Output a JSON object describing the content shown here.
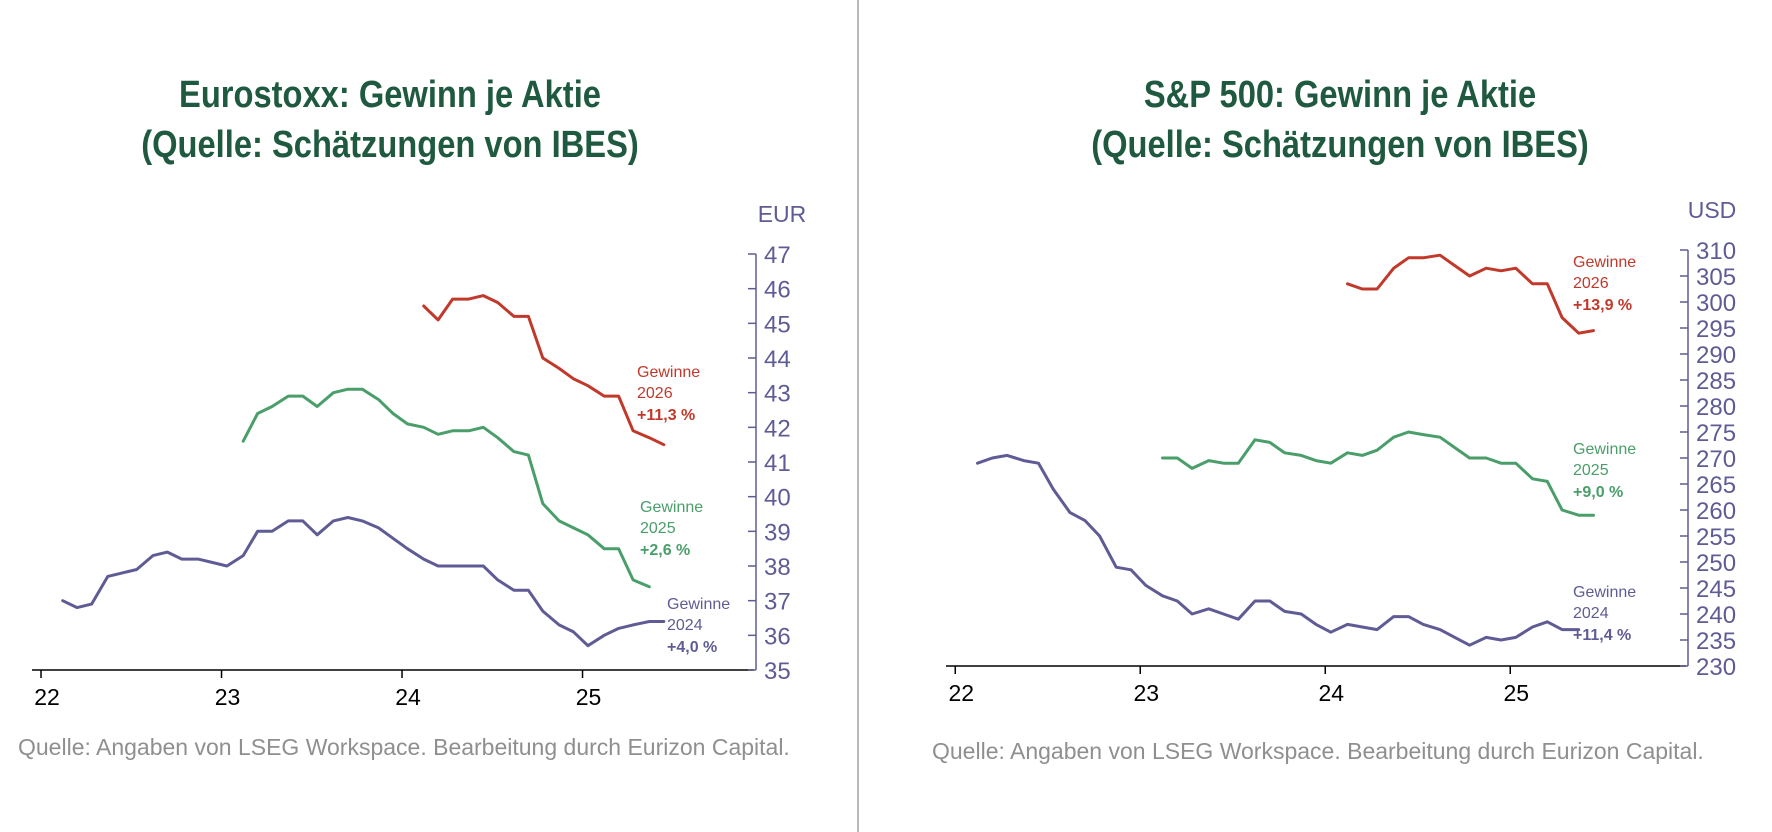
{
  "charts": [
    {
      "title_line1": "Eurostoxx: Gewinn je Aktie",
      "title_line2": "(Quelle: Schätzungen von IBES)",
      "source": "Quelle: Angaben von LSEG Workspace. Bearbeitung durch Eurizon Capital."
    },
    {
      "title_line1": "S&P 500: Gewinn je Aktie",
      "title_line2": "(Quelle: Schätzungen von IBES)",
      "source": "Quelle: Angaben von LSEG Workspace. Bearbeitung durch Eurizon Capital."
    }
  ],
  "chart_data": [
    {
      "type": "line",
      "title": "Eurostoxx: Gewinn je Aktie (Quelle: Schätzungen von IBES)",
      "ylabel": "EUR",
      "ylim": [
        35,
        47
      ],
      "ytick_step": 1,
      "xlim": [
        21.95,
        25.95
      ],
      "xticks": [
        "22",
        "23",
        "24",
        "25"
      ],
      "grid": false,
      "legend": "inline labels right of series end",
      "series": [
        {
          "name": "Gewinne 2026",
          "label_line1": "Gewinne",
          "label_line2": "2026",
          "label_pct": "+11,3 %",
          "color": "#c0392b",
          "x": [
            24.12,
            24.2,
            24.28,
            24.37,
            24.45,
            24.53,
            24.62,
            24.7,
            24.78,
            24.87,
            24.95,
            25.03,
            25.12,
            25.2,
            25.28,
            25.37,
            25.45
          ],
          "y": [
            45.5,
            45.1,
            45.7,
            45.7,
            45.8,
            45.6,
            45.2,
            45.2,
            44.0,
            43.7,
            43.4,
            43.2,
            42.9,
            42.9,
            41.9,
            41.7,
            41.5
          ]
        },
        {
          "name": "Gewinne 2025",
          "label_line1": "Gewinne",
          "label_line2": "2025",
          "label_pct": "+2,6 %",
          "color": "#4a9e6a",
          "x": [
            23.12,
            23.2,
            23.28,
            23.37,
            23.45,
            23.53,
            23.62,
            23.7,
            23.78,
            23.87,
            23.95,
            24.03,
            24.12,
            24.2,
            24.28,
            24.37,
            24.45,
            24.53,
            24.62,
            24.7,
            24.78,
            24.87,
            24.95,
            25.03,
            25.12,
            25.2,
            25.28,
            25.37
          ],
          "y": [
            41.6,
            42.4,
            42.6,
            42.9,
            42.9,
            42.6,
            43.0,
            43.1,
            43.1,
            42.8,
            42.4,
            42.1,
            42.0,
            41.8,
            41.9,
            41.9,
            42.0,
            41.7,
            41.3,
            41.2,
            39.8,
            39.3,
            39.1,
            38.9,
            38.5,
            38.5,
            37.6,
            37.4
          ]
        },
        {
          "name": "Gewinne 2024",
          "label_line1": "Gewinne",
          "label_line2": "2024",
          "label_pct": "+4,0 %",
          "color": "#5f5c95",
          "x": [
            22.12,
            22.2,
            22.28,
            22.37,
            22.45,
            22.53,
            22.62,
            22.7,
            22.78,
            22.87,
            22.95,
            23.03,
            23.12,
            23.2,
            23.28,
            23.37,
            23.45,
            23.53,
            23.62,
            23.7,
            23.78,
            23.87,
            23.95,
            24.03,
            24.12,
            24.2,
            24.28,
            24.37,
            24.45,
            24.53,
            24.62,
            24.7,
            24.78,
            24.87,
            24.95,
            25.03,
            25.12,
            25.2,
            25.28,
            25.37,
            25.45
          ],
          "y": [
            37.0,
            36.8,
            36.9,
            37.7,
            37.8,
            37.9,
            38.3,
            38.4,
            38.2,
            38.2,
            38.1,
            38.0,
            38.3,
            39.0,
            39.0,
            39.3,
            39.3,
            38.9,
            39.3,
            39.4,
            39.3,
            39.1,
            38.8,
            38.5,
            38.2,
            38.0,
            38.0,
            38.0,
            38.0,
            37.6,
            37.3,
            37.3,
            36.7,
            36.3,
            36.1,
            35.7,
            36.0,
            36.2,
            36.3,
            36.4,
            36.4
          ]
        }
      ]
    },
    {
      "type": "line",
      "title": "S&P 500: Gewinn je Aktie (Quelle: Schätzungen von IBES)",
      "ylabel": "USD",
      "ylim": [
        230,
        310
      ],
      "ytick_step": 5,
      "xlim": [
        21.95,
        25.95
      ],
      "xticks": [
        "22",
        "23",
        "24",
        "25"
      ],
      "grid": false,
      "legend": "inline labels right of series end",
      "series": [
        {
          "name": "Gewinne 2026",
          "label_line1": "Gewinne",
          "label_line2": "2026",
          "label_pct": "+13,9 %",
          "color": "#c0392b",
          "x": [
            24.12,
            24.2,
            24.28,
            24.37,
            24.45,
            24.53,
            24.62,
            24.7,
            24.78,
            24.87,
            24.95,
            25.03,
            25.12,
            25.2,
            25.28,
            25.37,
            25.45
          ],
          "y": [
            303.5,
            302.5,
            302.5,
            306.5,
            308.5,
            308.5,
            309.0,
            307.0,
            305.0,
            306.5,
            306.0,
            306.5,
            303.5,
            303.5,
            297.0,
            294.0,
            294.5
          ]
        },
        {
          "name": "Gewinne 2025",
          "label_line1": "Gewinne",
          "label_line2": "2025",
          "label_pct": "+9,0 %",
          "color": "#4a9e6a",
          "x": [
            23.12,
            23.2,
            23.28,
            23.37,
            23.45,
            23.53,
            23.62,
            23.7,
            23.78,
            23.87,
            23.95,
            24.03,
            24.12,
            24.2,
            24.28,
            24.37,
            24.45,
            24.53,
            24.62,
            24.7,
            24.78,
            24.87,
            24.95,
            25.03,
            25.12,
            25.2,
            25.28,
            25.37,
            25.45
          ],
          "y": [
            270.0,
            270.0,
            268.0,
            269.5,
            269.0,
            269.0,
            273.5,
            273.0,
            271.0,
            270.5,
            269.5,
            269.0,
            271.0,
            270.5,
            271.5,
            274.0,
            275.0,
            274.5,
            274.0,
            272.0,
            270.0,
            270.0,
            269.0,
            269.0,
            266.0,
            265.5,
            260.0,
            259.0,
            259.0
          ]
        },
        {
          "name": "Gewinne 2024",
          "label_line1": "Gewinne",
          "label_line2": "2024",
          "label_pct": "+11,4 %",
          "color": "#5f5c95",
          "x": [
            22.12,
            22.2,
            22.28,
            22.37,
            22.45,
            22.53,
            22.62,
            22.7,
            22.78,
            22.87,
            22.95,
            23.03,
            23.12,
            23.2,
            23.28,
            23.37,
            23.45,
            23.53,
            23.62,
            23.7,
            23.78,
            23.87,
            23.95,
            24.03,
            24.12,
            24.2,
            24.28,
            24.37,
            24.45,
            24.53,
            24.62,
            24.7,
            24.78,
            24.87,
            24.95,
            25.03,
            25.12,
            25.2,
            25.28,
            25.37
          ],
          "y": [
            269.0,
            270.0,
            270.5,
            269.5,
            269.0,
            264.0,
            259.5,
            258.0,
            255.0,
            249.0,
            248.5,
            245.5,
            243.5,
            242.5,
            240.0,
            241.0,
            240.0,
            239.0,
            242.5,
            242.5,
            240.5,
            240.0,
            238.0,
            236.5,
            238.0,
            237.5,
            237.0,
            239.5,
            239.5,
            238.0,
            237.0,
            235.5,
            234.0,
            235.5,
            235.0,
            235.5,
            237.5,
            238.5,
            237.0,
            237.0
          ]
        }
      ]
    }
  ]
}
